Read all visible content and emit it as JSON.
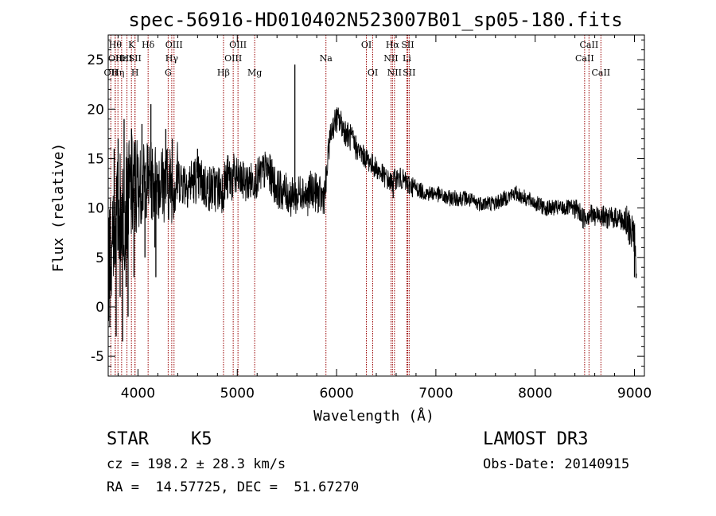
{
  "chart_data": {
    "type": "line",
    "title": "spec-56916-HD010402N523007B01_sp05-180.fits",
    "xlabel": "Wavelength (Å)",
    "ylabel": "Flux (relative)",
    "xlim": [
      3700,
      9100
    ],
    "ylim": [
      -7,
      27.5
    ],
    "xticks": [
      4000,
      5000,
      6000,
      7000,
      8000,
      9000
    ],
    "yticks": [
      -5,
      0,
      5,
      10,
      15,
      20,
      25
    ],
    "grid": false,
    "series": [
      {
        "name": "spectrum",
        "x": [
          3700,
          3740,
          3780,
          3820,
          3860,
          3900,
          3950,
          4000,
          4050,
          4100,
          4150,
          4200,
          4250,
          4300,
          4350,
          4400,
          4500,
          4600,
          4700,
          4800,
          4850,
          4900,
          5000,
          5100,
          5200,
          5300,
          5400,
          5500,
          5550,
          5580,
          5600,
          5650,
          5700,
          5750,
          5800,
          5850,
          5880,
          5900,
          5920,
          5950,
          6000,
          6050,
          6100,
          6150,
          6200,
          6300,
          6400,
          6500,
          6550,
          6600,
          6650,
          6700,
          6800,
          6900,
          7000,
          7100,
          7200,
          7300,
          7400,
          7500,
          7600,
          7700,
          7800,
          7900,
          8000,
          8100,
          8200,
          8300,
          8400,
          8450,
          8480,
          8500,
          8550,
          8600,
          8650,
          8700,
          8750,
          8800,
          8850,
          8900,
          8950,
          9000,
          9020
        ],
        "y": [
          4,
          7,
          9,
          10,
          9.5,
          11,
          12,
          12,
          12.5,
          13,
          12.5,
          13,
          12.5,
          12.5,
          12.5,
          13,
          12.5,
          13,
          12,
          12,
          12,
          13,
          13,
          12.5,
          13,
          14,
          12,
          11.5,
          11,
          11.5,
          11,
          12,
          11,
          12,
          11.5,
          11,
          11.5,
          13,
          16,
          18,
          19,
          18.5,
          17.5,
          17,
          16,
          15,
          14,
          13,
          12.5,
          13,
          13,
          12.5,
          12,
          11.5,
          11.5,
          11,
          11,
          11,
          10.5,
          10.5,
          10.5,
          11,
          11.5,
          11,
          10.5,
          10,
          10,
          10,
          10,
          9.5,
          9,
          9,
          9.5,
          9,
          9.5,
          9,
          9,
          9,
          9,
          8.5,
          8,
          7.5,
          1.5
        ]
      }
    ],
    "spikes": [
      {
        "x": 3716,
        "y": -2
      },
      {
        "x": 3760,
        "y": 16
      },
      {
        "x": 3780,
        "y": -3
      },
      {
        "x": 3800,
        "y": 17
      },
      {
        "x": 3820,
        "y": 1
      },
      {
        "x": 3845,
        "y": -3.5
      },
      {
        "x": 3860,
        "y": 19
      },
      {
        "x": 3880,
        "y": 2
      },
      {
        "x": 3900,
        "y": -1
      },
      {
        "x": 3935,
        "y": 18
      },
      {
        "x": 3960,
        "y": 3
      },
      {
        "x": 4040,
        "y": 18.5
      },
      {
        "x": 4070,
        "y": 5
      },
      {
        "x": 4130,
        "y": 20.5
      },
      {
        "x": 4170,
        "y": 6
      },
      {
        "x": 4180,
        "y": 3
      },
      {
        "x": 4280,
        "y": 18
      },
      {
        "x": 4345,
        "y": 17
      },
      {
        "x": 4600,
        "y": 16
      },
      {
        "x": 5580,
        "y": 24.5
      },
      {
        "x": 6570,
        "y": 11
      },
      {
        "x": 6720,
        "y": 11.5
      },
      {
        "x": 9000,
        "y": 3
      }
    ],
    "lines": [
      {
        "x": 3727,
        "label": "OII",
        "row": 3
      },
      {
        "x": 3771,
        "label": "Hθ",
        "row": 1
      },
      {
        "x": 3771,
        "label": "OII",
        "row": 2
      },
      {
        "x": 3798,
        "label": "Hη",
        "row": 3
      },
      {
        "x": 3835,
        "label": "Hε",
        "row": 2
      },
      {
        "x": 3889,
        "label": "HI",
        "row": 2
      },
      {
        "x": 3934,
        "label": "K",
        "row": 1
      },
      {
        "x": 3970,
        "label": "H",
        "row": 3
      },
      {
        "x": 3970,
        "label": "SII",
        "row": 2
      },
      {
        "x": 4102,
        "label": "Hδ",
        "row": 1
      },
      {
        "x": 4304,
        "label": "G",
        "row": 3
      },
      {
        "x": 4340,
        "label": "Hγ",
        "row": 2
      },
      {
        "x": 4363,
        "label": "OIII",
        "row": 1
      },
      {
        "x": 4861,
        "label": "Hβ",
        "row": 3
      },
      {
        "x": 4959,
        "label": "OIII",
        "row": 2
      },
      {
        "x": 5007,
        "label": "OIII",
        "row": 1
      },
      {
        "x": 5175,
        "label": "Mg",
        "row": 3
      },
      {
        "x": 5893,
        "label": "Na",
        "row": 2
      },
      {
        "x": 6300,
        "label": "OI",
        "row": 1
      },
      {
        "x": 6364,
        "label": "OI",
        "row": 3
      },
      {
        "x": 6548,
        "label": "NII",
        "row": 2
      },
      {
        "x": 6563,
        "label": "Hα",
        "row": 1
      },
      {
        "x": 6583,
        "label": "NII",
        "row": 3
      },
      {
        "x": 6708,
        "label": "Li",
        "row": 2
      },
      {
        "x": 6716,
        "label": "SII",
        "row": 1
      },
      {
        "x": 6731,
        "label": "SII",
        "row": 3
      },
      {
        "x": 8498,
        "label": "CaII",
        "row": 2
      },
      {
        "x": 8542,
        "label": "CaII",
        "row": 1
      },
      {
        "x": 8662,
        "label": "CaII",
        "row": 3
      }
    ]
  },
  "info": {
    "class": "STAR",
    "subclass": "K5",
    "survey": "LAMOST DR3",
    "cz": "cz = 198.2 ± 28.3 km/s",
    "obs_date": "Obs-Date: 20140915",
    "coords": "RA =  14.57725, DEC =  51.67270"
  },
  "colors": {
    "line_marker": "#990000",
    "spectrum": "#000000",
    "background": "#ffffff"
  }
}
